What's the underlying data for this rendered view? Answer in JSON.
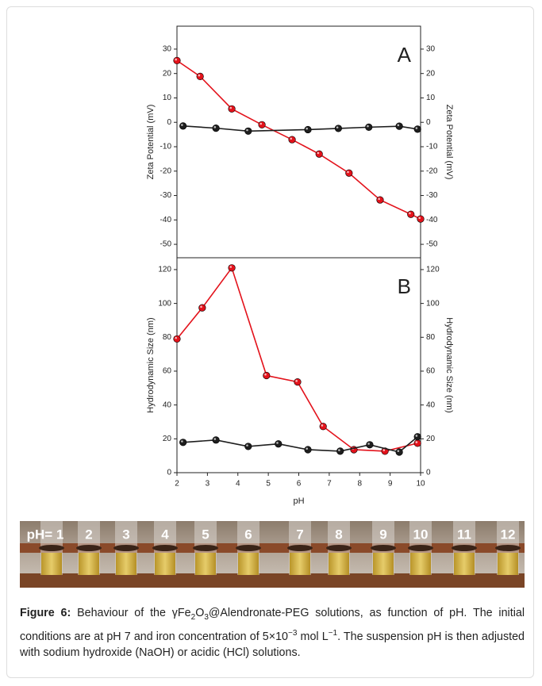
{
  "chart_data": [
    {
      "type": "line",
      "annotation": "A",
      "ylabel": "Zeta Potential (mV)",
      "y2label": "Zeta Potential (mV)",
      "xlim": [
        2,
        10
      ],
      "ylim": [
        -55.5,
        39.4
      ],
      "yticks": [
        -50,
        -40,
        -30,
        -20,
        -10,
        0,
        10,
        20,
        30
      ],
      "y2lim": [
        -55.5,
        39.4
      ],
      "y2ticks": [
        -50,
        -40,
        -30,
        -20,
        -10,
        0,
        10,
        20,
        30
      ],
      "series": [
        {
          "color": "#e3121b",
          "x": [
            2,
            2.76,
            3.8,
            4.79,
            5.78,
            6.67,
            7.65,
            8.67,
            9.68,
            10
          ],
          "values": [
            25.3,
            18.8,
            5.5,
            -1,
            -7.1,
            -13,
            -20.8,
            -31.8,
            -37.7,
            -39.6
          ]
        },
        {
          "color": "#1e1e1e",
          "x": [
            2.2,
            3.28,
            4.34,
            6.3,
            7.3,
            8.3,
            9.3,
            9.9
          ],
          "values": [
            -1.5,
            -2.4,
            -3.6,
            -3,
            -2.5,
            -2,
            -1.6,
            -2.8
          ]
        }
      ]
    },
    {
      "type": "line",
      "annotation": "B",
      "xlabel": "pH",
      "ylabel": "Hydrodynamic Size (nm)",
      "y2label": "Hydrodynamic Size (nm)",
      "xlim": [
        2,
        10
      ],
      "xticks": [
        2,
        3,
        4,
        5,
        6,
        7,
        8,
        9,
        10
      ],
      "ylim": [
        0,
        127
      ],
      "yticks": [
        0,
        20,
        40,
        60,
        80,
        100,
        120
      ],
      "y2lim": [
        0,
        127
      ],
      "y2ticks": [
        0,
        20,
        40,
        60,
        80,
        100,
        120
      ],
      "series": [
        {
          "color": "#e3121b",
          "x": [
            2,
            2.83,
            3.8,
            4.94,
            5.96,
            6.8,
            7.81,
            8.83,
            9.9
          ],
          "values": [
            79,
            97.4,
            121,
            57.4,
            53.6,
            27.3,
            13.6,
            12.7,
            17.4
          ]
        },
        {
          "color": "#1e1e1e",
          "x": [
            2.2,
            3.28,
            4.34,
            5.33,
            6.3,
            7.36,
            8.33,
            9.3,
            9.9
          ],
          "values": [
            17.9,
            19.3,
            15.5,
            17,
            13.6,
            12.7,
            16.5,
            12.2,
            21.2
          ]
        }
      ]
    }
  ],
  "photo": {
    "labels": [
      "pH= 1",
      "2",
      "3",
      "4",
      "5",
      "6",
      "7",
      "8",
      "9",
      "10",
      "11",
      "12"
    ]
  },
  "caption": {
    "runs": [
      {
        "text": "Figure 6:",
        "style": "bold"
      },
      {
        "text": " Behaviour of the γFe",
        "style": "normal"
      },
      {
        "text": "2",
        "style": "sub"
      },
      {
        "text": "O",
        "style": "normal"
      },
      {
        "text": "3",
        "style": "sub"
      },
      {
        "text": "@Alendronate-PEG solutions, as function of pH. The initial conditions are at pH 7 and iron concentration of 5×10",
        "style": "normal"
      },
      {
        "text": "−3",
        "style": "sup"
      },
      {
        "text": " mol L",
        "style": "normal"
      },
      {
        "text": "−1",
        "style": "sup"
      },
      {
        "text": ". The suspension pH is then adjusted with sodium hydroxide (NaOH) or acidic (HCl) solutions.",
        "style": "normal"
      }
    ]
  }
}
